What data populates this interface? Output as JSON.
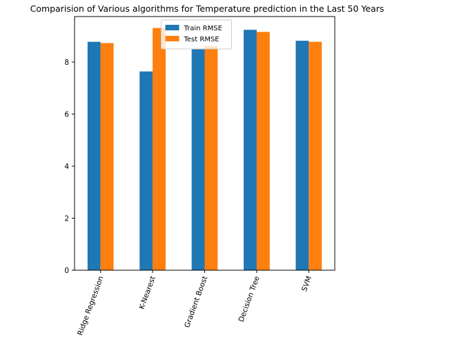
{
  "chart_data": {
    "type": "bar",
    "title": "Comparision of Various algorithms for Temperature prediction in the Last 50 Years",
    "xlabel": "",
    "ylabel": "",
    "categories": [
      "Ridge Regression",
      "K-Nearest",
      "Gradient Boost",
      "Decision Tree",
      "SVM"
    ],
    "series": [
      {
        "name": "Train RMSE",
        "color": "#1f77b4",
        "values": [
          8.78,
          7.64,
          8.49,
          9.24,
          8.82
        ]
      },
      {
        "name": "Test RMSE",
        "color": "#ff7f0e",
        "values": [
          8.73,
          9.31,
          8.62,
          9.16,
          8.78
        ]
      }
    ],
    "ylim": [
      0,
      9.75
    ],
    "yticks": [
      0,
      2,
      4,
      6,
      8
    ],
    "ytick_labels": [
      "0",
      "2",
      "4",
      "6",
      "8"
    ],
    "legend_position": "upper center",
    "grid": false,
    "xtick_rotation_deg": 70
  }
}
